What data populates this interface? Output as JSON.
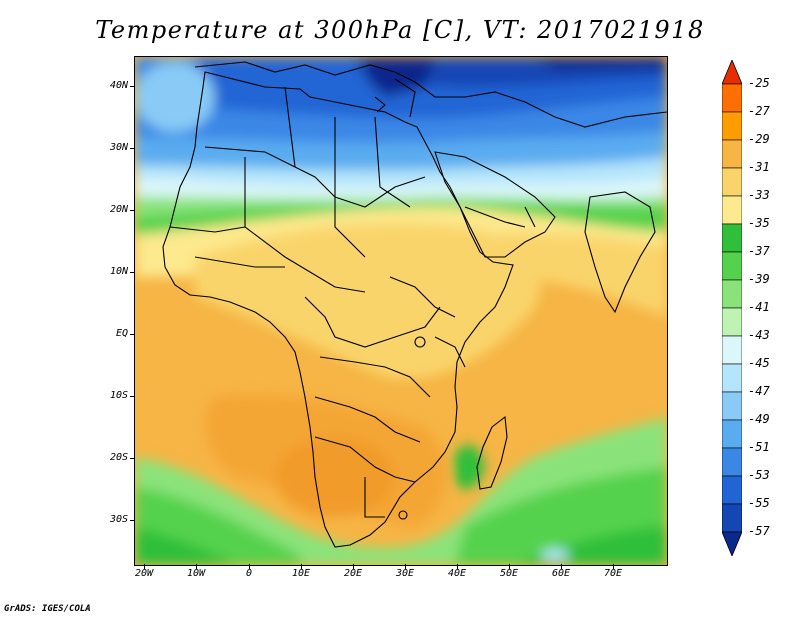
{
  "title": "Temperature at 300hPa [C], VT: 2017021918",
  "credit": "GrADS: IGES/COLA",
  "map": {
    "lat_labels": [
      "40N",
      "30N",
      "20N",
      "10N",
      "EQ",
      "10S",
      "20S",
      "30S"
    ],
    "lon_labels": [
      "20W",
      "10W",
      "0",
      "10E",
      "20E",
      "30E",
      "40E",
      "50E",
      "60E",
      "70E"
    ]
  },
  "colorbar": {
    "labels": [
      "-25",
      "-27",
      "-29",
      "-31",
      "-33",
      "-35",
      "-37",
      "-39",
      "-41",
      "-43",
      "-45",
      "-47",
      "-49",
      "-51",
      "-53",
      "-55",
      "-57"
    ],
    "colors": [
      "#e62e00",
      "#ff6e00",
      "#ff9c00",
      "#f6b545",
      "#f9d46b",
      "#fde98e",
      "#2fbf3b",
      "#55d24d",
      "#8ae37a",
      "#bff3b4",
      "#dcf7fa",
      "#b4e5fb",
      "#89cbf6",
      "#5aacf0",
      "#3b87e6",
      "#2165d5",
      "#1446b4",
      "#0b288c"
    ]
  }
}
